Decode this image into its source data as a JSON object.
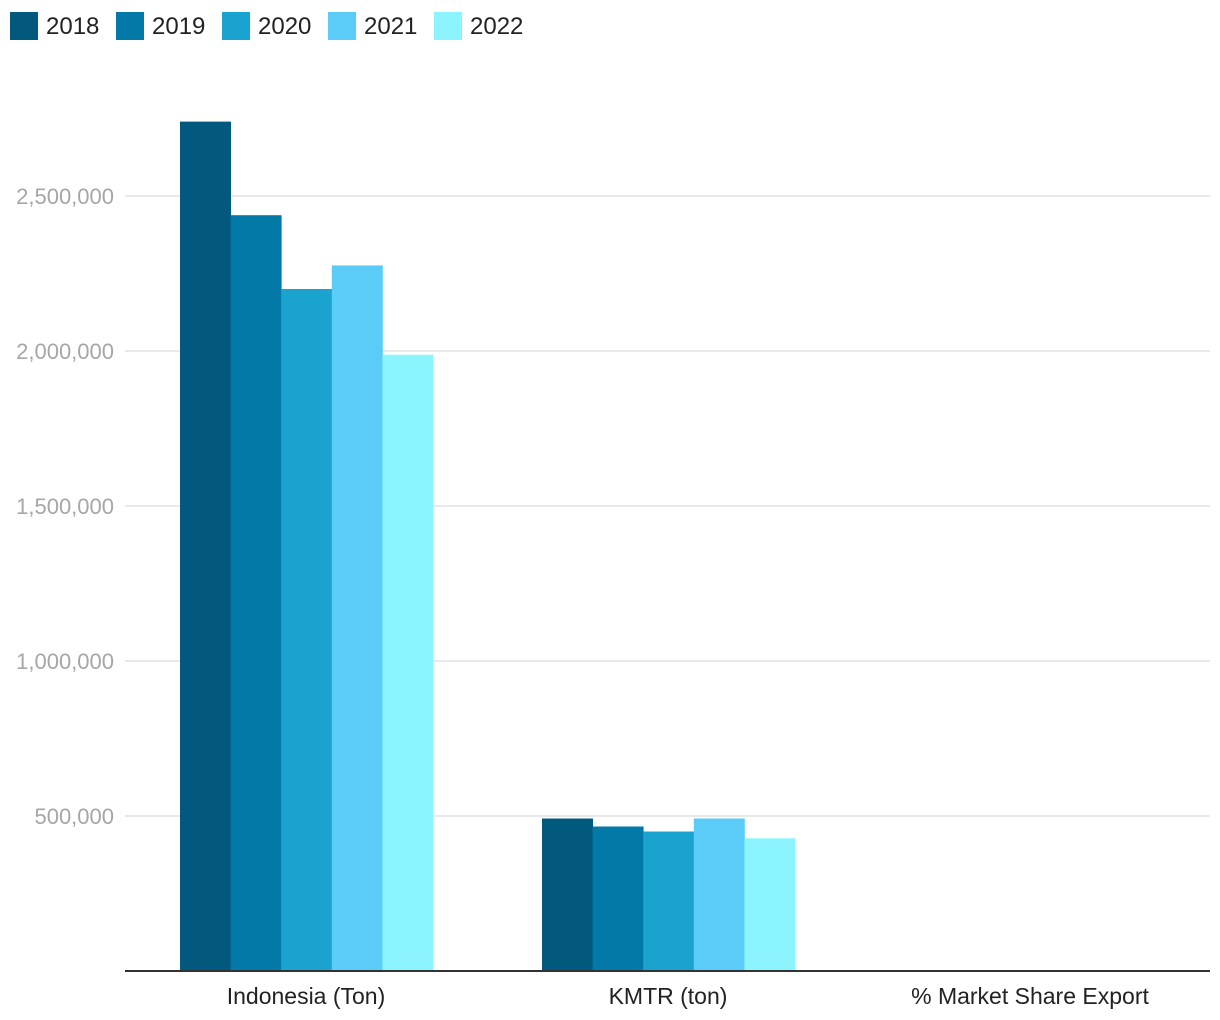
{
  "chart_data": {
    "type": "bar",
    "title": "",
    "xlabel": "",
    "ylabel": "",
    "categories": [
      "Indonesia (Ton)",
      "KMTR (ton)",
      "% Market Share Export"
    ],
    "series": [
      {
        "name": "2018",
        "color": "#03587e",
        "values": [
          2740000,
          492000,
          null
        ]
      },
      {
        "name": "2019",
        "color": "#0279a6",
        "values": [
          2438000,
          466000,
          null
        ]
      },
      {
        "name": "2020",
        "color": "#1ba3d0",
        "values": [
          2200000,
          450000,
          null
        ]
      },
      {
        "name": "2021",
        "color": "#5bcbf8",
        "values": [
          2276000,
          492000,
          null
        ]
      },
      {
        "name": "2022",
        "color": "#8cf4fe",
        "values": [
          1988000,
          428000,
          null
        ]
      }
    ],
    "ylim": [
      0,
      2750000
    ],
    "yticks": [
      500000,
      1000000,
      1500000,
      2000000,
      2500000
    ],
    "ytick_labels": [
      "500,000",
      "1,000,000",
      "1,500,000",
      "2,000,000",
      "2,500,000"
    ],
    "grid": true,
    "legend_position": "top-left"
  }
}
